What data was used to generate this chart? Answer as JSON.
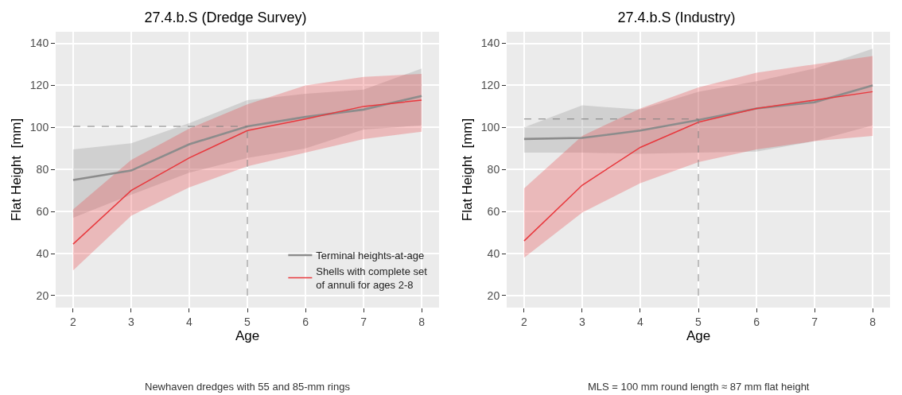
{
  "chart_data": [
    {
      "type": "line",
      "title": "27.4.b.S (Dredge Survey)",
      "xlabel": "Age",
      "ylabel": "Flat Height  [mm]",
      "x": [
        2,
        3,
        4,
        5,
        6,
        7,
        8
      ],
      "series": [
        {
          "name": "Terminal heights-at-age",
          "color": "#8c8c8c",
          "values": [
            75,
            79.5,
            92,
            100.5,
            105,
            108.5,
            115
          ],
          "lower": [
            57,
            68,
            78.5,
            85.5,
            90,
            99,
            101
          ],
          "upper": [
            89.5,
            92.5,
            102,
            113,
            116,
            118,
            128
          ]
        },
        {
          "name": "Shells with complete set of annuli for ages 2-8",
          "color": "#e8383d",
          "values": [
            44.5,
            70,
            85.5,
            98.5,
            104,
            110,
            113
          ],
          "lower": [
            32,
            58,
            71.5,
            81.5,
            88,
            94.5,
            98
          ],
          "upper": [
            61,
            84.5,
            99.5,
            111,
            120,
            124,
            125.5
          ]
        }
      ],
      "xlim": [
        1.7,
        8.3
      ],
      "xticks": [
        2,
        3,
        4,
        5,
        6,
        7,
        8
      ],
      "ylim": [
        14.3,
        145.5
      ],
      "yticks": [
        20,
        40,
        60,
        80,
        100,
        120,
        140
      ],
      "ref_lines": [
        {
          "axis": "y",
          "value": 100.5,
          "color": "#7f7f7f",
          "line_style": "dashed"
        },
        {
          "axis": "x",
          "value": 5,
          "color": "#7f7f7f",
          "line_style": "dashed"
        }
      ],
      "annotations": [
        "Newhaven dredges with 55 and 85-mm rings"
      ],
      "grid": true,
      "legend": "bottom right",
      "line_style": "solid",
      "marker": "none"
    },
    {
      "type": "line",
      "title": "27.4.b.S (Industry)",
      "xlabel": "Age",
      "ylabel": "Flat Height  [mm]",
      "x": [
        2,
        3,
        4,
        5,
        6,
        7,
        8
      ],
      "series": [
        {
          "color": "#8c8c8c",
          "values": [
            94.5,
            95,
            98.5,
            103.5,
            109,
            112,
            120
          ],
          "lower": [
            88,
            88,
            87.5,
            88,
            88.5,
            93.5,
            101
          ],
          "upper": [
            100,
            110.5,
            108.5,
            117,
            122,
            128,
            137.5
          ]
        },
        {
          "color": "#e8383d",
          "values": [
            46,
            72.5,
            90.5,
            102.5,
            109,
            113,
            117
          ],
          "lower": [
            38,
            59.5,
            73.5,
            83.5,
            89.5,
            93.5,
            96
          ],
          "upper": [
            71,
            96,
            109,
            119,
            126,
            130,
            134
          ]
        }
      ],
      "xlim": [
        1.7,
        8.3
      ],
      "xticks": [
        2,
        3,
        4,
        5,
        6,
        7,
        8
      ],
      "ylim": [
        14.3,
        145.5
      ],
      "yticks": [
        20,
        40,
        60,
        80,
        100,
        120,
        140
      ],
      "ref_lines": [
        {
          "axis": "y",
          "value": 104,
          "color": "#7f7f7f",
          "line_style": "dashed"
        },
        {
          "axis": "x",
          "value": 5,
          "color": "#7f7f7f",
          "line_style": "dashed"
        }
      ],
      "annotations": [
        "MLS = 100 mm round length ≈ 87 mm flat height"
      ],
      "grid": true,
      "legend": false,
      "line_style": "solid",
      "marker": "none"
    }
  ]
}
